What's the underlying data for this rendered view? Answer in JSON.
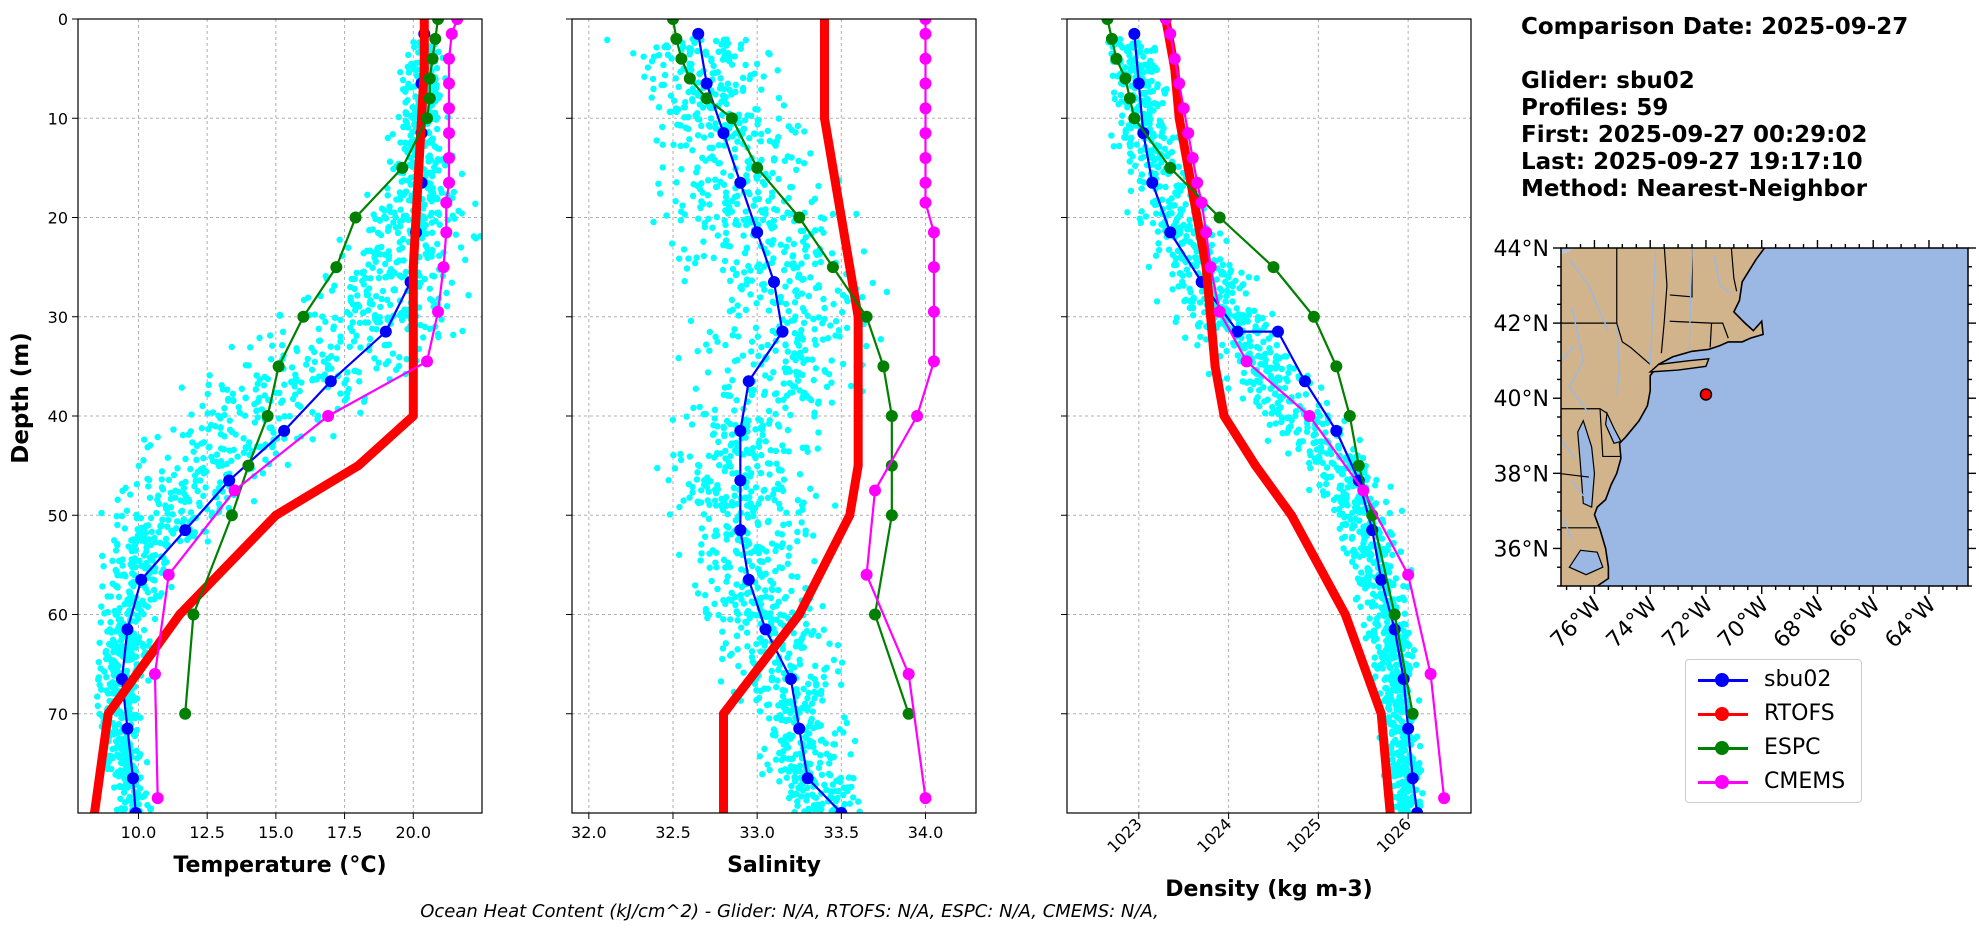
{
  "info": {
    "comparison_date": "Comparison Date: 2025-09-27",
    "glider": "Glider: sbu02",
    "profiles": "Profiles: 59",
    "first": "First: 2025-09-27 00:29:02",
    "last": "Last: 2025-09-27 19:17:10",
    "method": "Method: Nearest-Neighbor"
  },
  "footer": "Ocean Heat Content (kJ/cm^2) - Glider: N/A,  RTOFS: N/A,  ESPC: N/A,  CMEMS: N/A,",
  "colors": {
    "scatter": "#00ffff",
    "sbu02": "#0000ff",
    "RTOFS": "#ff0000",
    "ESPC": "#008000",
    "CMEMS": "#ff00ff",
    "land": "#d2b48c",
    "ocean": "#9bb8e4"
  },
  "legend": [
    {
      "name": "sbu02",
      "color": "#0000ff"
    },
    {
      "name": "RTOFS",
      "color": "#ff0000"
    },
    {
      "name": "ESPC",
      "color": "#008000"
    },
    {
      "name": "CMEMS",
      "color": "#ff00ff"
    }
  ],
  "chart_data": [
    {
      "type": "line",
      "xlabel": "Temperature (°C)",
      "ylabel": "Depth (m)",
      "xlim": [
        7.8,
        22.5
      ],
      "ylim": [
        80,
        0
      ],
      "grid": true,
      "xticks": [
        10.0,
        12.5,
        15.0,
        17.5,
        20.0
      ],
      "xtick_labels": [
        "10.0",
        "12.5",
        "15.0",
        "17.5",
        "20.0"
      ],
      "yticks": [
        0,
        10,
        20,
        30,
        40,
        50,
        60,
        70
      ],
      "scatter_profile": {
        "depths": [
          2,
          5,
          10,
          15,
          20,
          25,
          30,
          35,
          40,
          45,
          50,
          55,
          60,
          65,
          70,
          75,
          79
        ],
        "centers": [
          20.5,
          20.4,
          20.3,
          20.2,
          20.0,
          19.5,
          18.5,
          16.5,
          14.5,
          12.5,
          11.0,
          10.0,
          9.6,
          9.4,
          9.3,
          9.5,
          9.8
        ],
        "spreads": [
          0.5,
          0.6,
          0.8,
          1.2,
          1.5,
          2.0,
          2.5,
          3.0,
          3.0,
          2.5,
          1.8,
          1.2,
          0.8,
          0.7,
          0.7,
          0.6,
          0.5
        ]
      },
      "series": [
        {
          "name": "sbu02",
          "x": [
            20.4,
            20.3,
            20.3,
            20.3,
            20.1,
            19.9,
            19.0,
            17.0,
            15.3,
            13.3,
            11.7,
            10.1,
            9.6,
            9.4,
            9.6,
            9.8,
            9.9
          ],
          "y": [
            1.5,
            6.5,
            11.5,
            16.5,
            21.5,
            26.5,
            31.5,
            36.5,
            41.5,
            46.5,
            51.5,
            56.5,
            61.5,
            66.5,
            71.5,
            76.5,
            80
          ]
        },
        {
          "name": "RTOFS",
          "x": [
            20.4,
            20.4,
            20.3,
            20.2,
            20.1,
            20.0,
            20.0,
            20.0,
            20.0,
            18.0,
            15.0,
            11.5,
            8.9,
            8.4
          ],
          "y": [
            0,
            5,
            10,
            15,
            20,
            25,
            30,
            35,
            40,
            45,
            50,
            60,
            70,
            80
          ]
        },
        {
          "name": "ESPC",
          "x": [
            20.9,
            20.8,
            20.7,
            20.6,
            20.6,
            20.5,
            19.6,
            17.9,
            17.2,
            16.0,
            15.1,
            14.7,
            14.0,
            13.4,
            12.0,
            11.7
          ],
          "y": [
            0,
            2,
            4,
            6,
            8,
            10,
            15,
            20,
            25,
            30,
            35,
            40,
            45,
            50,
            60,
            70
          ]
        },
        {
          "name": "CMEMS",
          "x": [
            21.6,
            21.4,
            21.3,
            21.3,
            21.3,
            21.3,
            21.3,
            21.3,
            21.2,
            21.2,
            21.1,
            20.9,
            20.5,
            16.9,
            13.5,
            11.1,
            10.6,
            10.7
          ],
          "y": [
            0,
            1.5,
            4,
            6.5,
            9,
            11.5,
            14,
            16.5,
            18.5,
            21.5,
            25,
            29.5,
            34.5,
            40,
            47.5,
            56,
            66,
            78.5
          ]
        }
      ]
    },
    {
      "type": "line",
      "xlabel": "Salinity",
      "xlim": [
        31.9,
        34.3
      ],
      "ylim": [
        80,
        0
      ],
      "grid": true,
      "xticks": [
        32.0,
        32.5,
        33.0,
        33.5,
        34.0
      ],
      "xtick_labels": [
        "32.0",
        "32.5",
        "33.0",
        "33.5",
        "34.0"
      ],
      "yticks": [
        0,
        10,
        20,
        30,
        40,
        50,
        60,
        70
      ],
      "scatter_profile": {
        "depths": [
          2,
          5,
          10,
          15,
          20,
          25,
          30,
          35,
          40,
          45,
          50,
          55,
          60,
          65,
          70,
          75,
          79
        ],
        "centers": [
          32.6,
          32.7,
          32.8,
          32.9,
          33.0,
          33.1,
          33.2,
          33.1,
          32.95,
          32.9,
          32.9,
          32.95,
          33.05,
          33.15,
          33.25,
          33.3,
          33.4
        ],
        "spreads": [
          0.35,
          0.35,
          0.35,
          0.4,
          0.45,
          0.45,
          0.5,
          0.4,
          0.35,
          0.35,
          0.35,
          0.3,
          0.3,
          0.3,
          0.2,
          0.2,
          0.2
        ]
      },
      "series": [
        {
          "name": "sbu02",
          "x": [
            32.65,
            32.7,
            32.8,
            32.9,
            33.0,
            33.1,
            33.15,
            33.15,
            32.95,
            32.9,
            32.9,
            32.9,
            32.95,
            33.05,
            33.2,
            33.25,
            33.3,
            33.5
          ],
          "y": [
            1.5,
            6.5,
            11.5,
            16.5,
            21.5,
            26.5,
            31.5,
            31.5,
            36.5,
            41.5,
            46.5,
            51.5,
            56.5,
            61.5,
            66.5,
            71.5,
            76.5,
            80
          ]
        },
        {
          "name": "RTOFS",
          "x": [
            33.4,
            33.4,
            33.4,
            33.45,
            33.5,
            33.55,
            33.6,
            33.6,
            33.6,
            33.6,
            33.55,
            33.25,
            32.8,
            32.8
          ],
          "y": [
            0,
            5,
            10,
            15,
            20,
            25,
            30,
            35,
            40,
            45,
            50,
            60,
            70,
            80
          ]
        },
        {
          "name": "ESPC",
          "x": [
            32.5,
            32.52,
            32.55,
            32.6,
            32.7,
            32.85,
            33.0,
            33.25,
            33.45,
            33.65,
            33.75,
            33.8,
            33.8,
            33.8,
            33.7,
            33.9
          ],
          "y": [
            0,
            2,
            4,
            6,
            8,
            10,
            15,
            20,
            25,
            30,
            35,
            40,
            45,
            50,
            60,
            70
          ]
        },
        {
          "name": "CMEMS",
          "x": [
            34.0,
            34.0,
            34.0,
            34.0,
            34.0,
            34.0,
            34.0,
            34.0,
            34.0,
            34.05,
            34.05,
            34.05,
            34.05,
            33.95,
            33.7,
            33.65,
            33.9,
            34.0
          ],
          "y": [
            0,
            1.5,
            4,
            6.5,
            9,
            11.5,
            14,
            16.5,
            18.5,
            21.5,
            25,
            29.5,
            34.5,
            40,
            47.5,
            56,
            66,
            78.5
          ]
        }
      ]
    },
    {
      "type": "line",
      "xlabel": "Density (kg m-3)",
      "xlim": [
        1022.2,
        1026.7
      ],
      "ylim": [
        80,
        0
      ],
      "grid": true,
      "xticks": [
        1023,
        1024,
        1025,
        1026
      ],
      "xtick_labels": [
        "1023",
        "1024",
        "1025",
        "1026"
      ],
      "yticks": [
        0,
        10,
        20,
        30,
        40,
        50,
        60,
        70
      ],
      "scatter_profile": {
        "depths": [
          2,
          5,
          10,
          15,
          20,
          25,
          30,
          35,
          40,
          45,
          50,
          55,
          60,
          65,
          70,
          75,
          79
        ],
        "centers": [
          1022.9,
          1022.95,
          1023.05,
          1023.2,
          1023.4,
          1023.65,
          1024.0,
          1024.4,
          1024.8,
          1025.2,
          1025.5,
          1025.65,
          1025.75,
          1025.85,
          1025.9,
          1025.95,
          1026.0
        ],
        "spreads": [
          0.2,
          0.2,
          0.25,
          0.3,
          0.35,
          0.4,
          0.45,
          0.45,
          0.4,
          0.35,
          0.3,
          0.25,
          0.2,
          0.2,
          0.15,
          0.15,
          0.15
        ]
      },
      "series": [
        {
          "name": "sbu02",
          "x": [
            1022.95,
            1023.0,
            1023.05,
            1023.15,
            1023.35,
            1023.7,
            1024.1,
            1024.55,
            1024.85,
            1025.2,
            1025.45,
            1025.6,
            1025.7,
            1025.85,
            1025.95,
            1026.0,
            1026.05,
            1026.1
          ],
          "y": [
            1.5,
            6.5,
            11.5,
            16.5,
            21.5,
            26.5,
            31.5,
            31.5,
            36.5,
            41.5,
            46.5,
            51.5,
            56.5,
            61.5,
            66.5,
            71.5,
            76.5,
            80
          ]
        },
        {
          "name": "RTOFS",
          "x": [
            1023.3,
            1023.4,
            1023.45,
            1023.55,
            1023.65,
            1023.75,
            1023.8,
            1023.85,
            1023.95,
            1024.3,
            1024.7,
            1025.3,
            1025.7,
            1025.8
          ],
          "y": [
            0,
            5,
            10,
            15,
            20,
            25,
            30,
            35,
            40,
            45,
            50,
            60,
            70,
            80
          ]
        },
        {
          "name": "ESPC",
          "x": [
            1022.65,
            1022.7,
            1022.75,
            1022.85,
            1022.9,
            1022.95,
            1023.35,
            1023.9,
            1024.5,
            1024.95,
            1025.2,
            1025.35,
            1025.45,
            1025.6,
            1025.85,
            1026.05
          ],
          "y": [
            0,
            2,
            4,
            6,
            8,
            10,
            15,
            20,
            25,
            30,
            35,
            40,
            45,
            50,
            60,
            70
          ]
        },
        {
          "name": "CMEMS",
          "x": [
            1023.3,
            1023.35,
            1023.4,
            1023.45,
            1023.5,
            1023.55,
            1023.6,
            1023.65,
            1023.7,
            1023.75,
            1023.8,
            1023.9,
            1024.2,
            1024.9,
            1025.5,
            1026.0,
            1026.25,
            1026.4
          ],
          "y": [
            0,
            1.5,
            4,
            6.5,
            9,
            11.5,
            14,
            16.5,
            18.5,
            21.5,
            25,
            29.5,
            34.5,
            40,
            47.5,
            56,
            66,
            78.5
          ]
        }
      ]
    },
    {
      "type": "map",
      "xlim": [
        -77.2,
        -62.6
      ],
      "ylim": [
        35,
        44
      ],
      "lat_ticks": [
        36,
        38,
        40,
        42,
        44
      ],
      "lat_labels": [
        "36°N",
        "38°N",
        "40°N",
        "42°N",
        "44°N"
      ],
      "lon_ticks": [
        -76,
        -74,
        -72,
        -70,
        -68,
        -66,
        -64
      ],
      "lon_labels": [
        "76°W",
        "74°W",
        "72°W",
        "70°W",
        "68°W",
        "66°W",
        "64°W"
      ],
      "glider_position": {
        "lon": -72.0,
        "lat": 40.1
      }
    }
  ]
}
